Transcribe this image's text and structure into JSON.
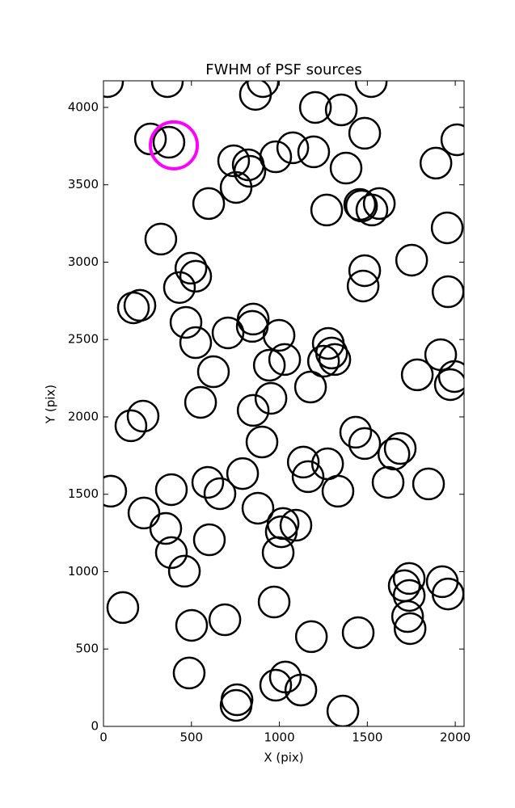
{
  "chart_data": {
    "type": "scatter",
    "title": "FWHM of PSF sources",
    "x_label": "X (pix)",
    "y_label": "Y (pix)",
    "xlim": [
      0,
      2050
    ],
    "ylim": [
      0,
      4172
    ],
    "xticks": [
      0,
      500,
      1000,
      1500,
      2000
    ],
    "yticks": [
      0,
      500,
      1000,
      1500,
      2000,
      2500,
      3000,
      3500,
      4000
    ],
    "series": [
      {
        "color": "#000000",
        "x": [
          23,
          363,
          906,
          1522,
          864,
          1205,
          1352,
          267,
          372,
          1485,
          2009,
          1076,
          1195,
          979,
          740,
          823,
          832,
          754,
          1379,
          1890,
          598,
          1457,
          1467,
          1568,
          1526,
          1269,
          1954,
          326,
          1752,
          497,
          524,
          432,
          1485,
          1476,
          1959,
          170,
          207,
          469,
          851,
          846,
          708,
          998,
          524,
          1278,
          1297,
          1251,
          1315,
          1030,
          943,
          1917,
          625,
          1995,
          1972,
          1784,
          1177,
          952,
          552,
          851,
          225,
          156,
          1434,
          1485,
          901,
          1687,
          1651,
          1136,
          1274,
          1163,
          791,
          593,
          662,
          386,
          41,
          1333,
          1618,
          1848,
          878,
          1021,
          1094,
          1011,
          230,
          354,
          602,
          386,
          993,
          460,
          1738,
          1710,
          1926,
          1959,
          1738,
          110,
          970,
          690,
          1729,
          1743,
          501,
          1182,
          1448,
          487,
          1034,
          979,
          1122,
          759,
          754,
          1361
        ],
        "y": [
          4167,
          4167,
          4167,
          4167,
          4084,
          4000,
          3984,
          3796,
          3775,
          3833,
          3791,
          3739,
          3713,
          3681,
          3655,
          3629,
          3587,
          3483,
          3608,
          3640,
          3379,
          3373,
          3363,
          3379,
          3337,
          3337,
          3222,
          3149,
          3013,
          2961,
          2909,
          2836,
          2945,
          2846,
          2809,
          2705,
          2721,
          2611,
          2632,
          2585,
          2543,
          2527,
          2480,
          2475,
          2413,
          2360,
          2371,
          2371,
          2334,
          2402,
          2292,
          2261,
          2209,
          2272,
          2193,
          2120,
          2094,
          2042,
          2005,
          1943,
          1901,
          1828,
          1838,
          1796,
          1760,
          1708,
          1697,
          1614,
          1634,
          1577,
          1504,
          1530,
          1520,
          1520,
          1577,
          1567,
          1410,
          1311,
          1300,
          1258,
          1379,
          1279,
          1206,
          1123,
          1123,
          1003,
          956,
          909,
          935,
          856,
          846,
          768,
          804,
          689,
          710,
          632,
          653,
          580,
          606,
          345,
          319,
          266,
          235,
          172,
          136,
          99
        ]
      },
      {
        "color": "#ff00ff",
        "x": [
          400
        ],
        "y": [
          3755
        ]
      }
    ]
  }
}
